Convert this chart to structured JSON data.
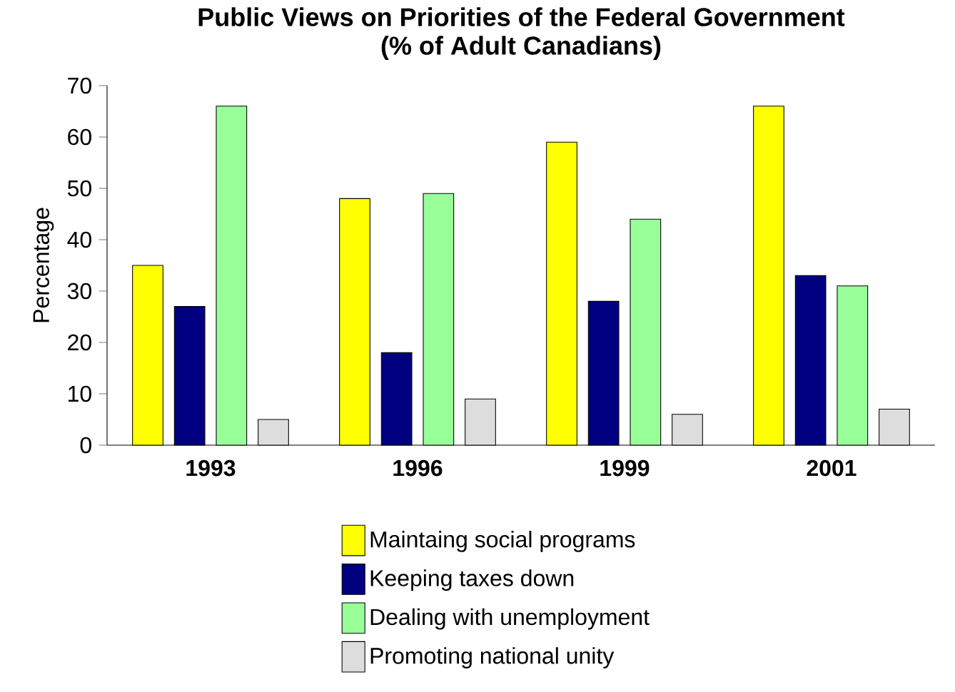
{
  "chart_data": {
    "type": "bar",
    "title": "Public Views on Priorities of the Federal Government",
    "subtitle": "(% of Adult Canadians)",
    "ylabel": "Percentage",
    "categories": [
      "1993",
      "1996",
      "1999",
      "2001"
    ],
    "series": [
      {
        "name": "Maintaing social programs",
        "color": "#ffff00",
        "values": [
          35,
          48,
          59,
          66
        ]
      },
      {
        "name": "Keeping taxes down",
        "color": "#000080",
        "values": [
          27,
          18,
          28,
          33
        ]
      },
      {
        "name": "Dealing with unemployment",
        "color": "#99ff99",
        "values": [
          66,
          49,
          44,
          31
        ]
      },
      {
        "name": "Promoting national unity",
        "color": "#dddddd",
        "values": [
          5,
          9,
          6,
          7
        ]
      }
    ],
    "ylim": [
      0,
      70
    ],
    "yticks": [
      0,
      10,
      20,
      30,
      40,
      50,
      60,
      70
    ],
    "legend": "bottom"
  }
}
